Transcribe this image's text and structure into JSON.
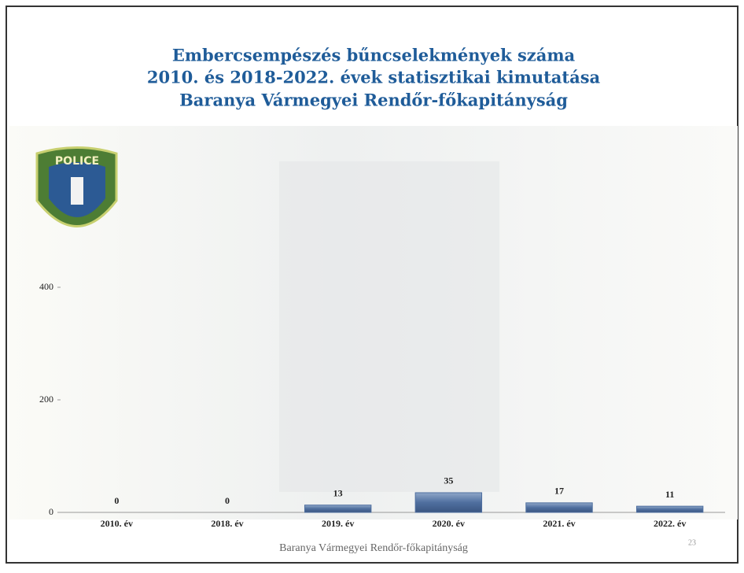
{
  "chart_data": {
    "type": "bar",
    "title": [
      "Embercsempészés bűncselekmények száma",
      "2010. és 2018-2022. évek statisztikai kimutatása",
      "Baranya Vármegyei Rendőr-főkapitányság"
    ],
    "categories": [
      "2010. év",
      "2018. év",
      "2019. év",
      "2020. év",
      "2021. év",
      "2022. év"
    ],
    "values": [
      0,
      0,
      13,
      35,
      17,
      11
    ],
    "color": "#4f6f9f",
    "ylim": [
      0,
      600
    ],
    "yticks": [
      0,
      200,
      400
    ],
    "grid": false
  },
  "logo_text": "POLICE",
  "footer": {
    "text": "Baranya Vármegyei Rendőr-főkapitányság",
    "page_number": "23"
  }
}
